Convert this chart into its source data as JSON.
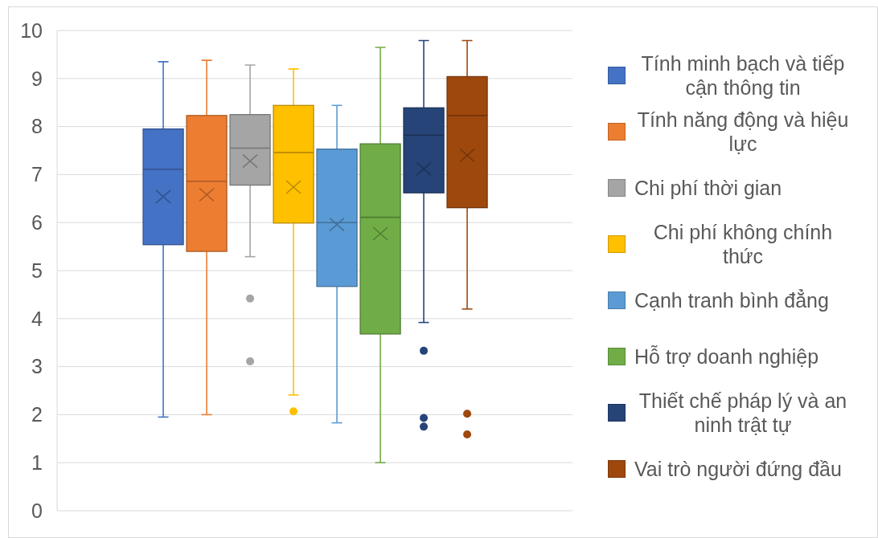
{
  "chart_data": {
    "type": "box",
    "categories": [
      null
    ],
    "ylim": [
      0,
      10
    ],
    "yticks": [
      0,
      1,
      2,
      3,
      4,
      5,
      6,
      7,
      8,
      9,
      10
    ],
    "grid": "y",
    "legend": "right",
    "tick_labels": "y",
    "series": [
      {
        "name": "Tính minh bạch và tiếp cận thông tin",
        "color": "#4472c4",
        "boxes": [
          {
            "low": 1.95,
            "q1": 5.54,
            "median": 7.11,
            "q3": 7.95,
            "high": 9.35,
            "mean": 6.54
          }
        ]
      },
      {
        "name": "Tính năng động và hiệu lực",
        "color": "#ed7d31",
        "boxes": [
          {
            "low": 2.0,
            "q1": 5.4,
            "median": 6.86,
            "q3": 8.23,
            "high": 9.38,
            "mean": 6.58
          }
        ]
      },
      {
        "name": "Chi phí thời gian",
        "color": "#a5a5a5",
        "boxes": [
          {
            "low": 5.29,
            "q1": 6.78,
            "median": 7.55,
            "q3": 8.25,
            "high": 9.28,
            "mean": 7.28,
            "outliers": [
              4.42,
              3.11
            ]
          }
        ]
      },
      {
        "name": "Chi phí không chính thức",
        "color": "#ffc000",
        "boxes": [
          {
            "low": 2.41,
            "q1": 5.99,
            "median": 7.46,
            "q3": 8.44,
            "high": 9.2,
            "mean": 6.74,
            "outliers": [
              2.07
            ]
          }
        ]
      },
      {
        "name": "Cạnh tranh bình đẳng",
        "color": "#5b9bd5",
        "boxes": [
          {
            "low": 1.83,
            "q1": 4.67,
            "median": 6.0,
            "q3": 7.53,
            "high": 8.44,
            "mean": 5.96
          }
        ]
      },
      {
        "name": "Hỗ trợ doanh nghiệp",
        "color": "#70ad47",
        "boxes": [
          {
            "low": 1.0,
            "q1": 3.68,
            "median": 6.11,
            "q3": 7.64,
            "high": 9.65,
            "mean": 5.77
          }
        ]
      },
      {
        "name": "Thiết chế pháp lý và an ninh trật tự",
        "color": "#264478",
        "boxes": [
          {
            "low": 3.92,
            "q1": 6.62,
            "median": 7.82,
            "q3": 8.39,
            "high": 9.79,
            "mean": 7.12,
            "outliers": [
              3.33,
              1.93,
              1.75
            ]
          }
        ]
      },
      {
        "name": "Vai trò người đứng đầu",
        "color": "#9e480e",
        "boxes": [
          {
            "low": 4.2,
            "q1": 6.31,
            "median": 8.23,
            "q3": 9.04,
            "high": 9.79,
            "mean": 7.4,
            "outliers": [
              2.02,
              1.59
            ]
          }
        ]
      }
    ]
  }
}
